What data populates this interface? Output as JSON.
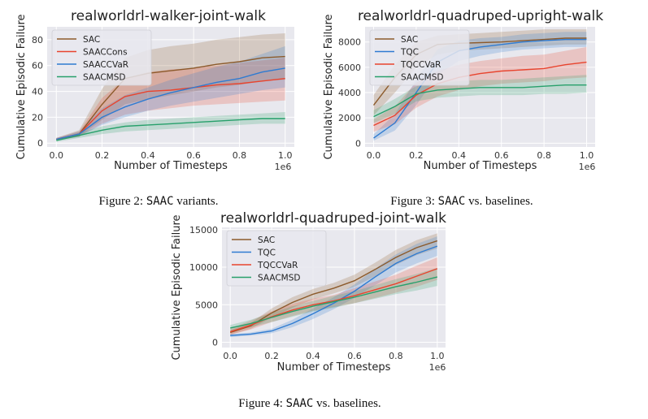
{
  "colors": {
    "panel_bg": "#e8e8ee",
    "grid": "#ffffff",
    "SAC": "#8c5a2b",
    "SAACCons": "#e8442e",
    "SAACCVaR": "#2f7bd1",
    "SAACMSD": "#27a06b",
    "TQC": "#2f7bd1",
    "TQCCVaR": "#e8442e"
  },
  "captions": [
    {
      "prefix": "Figure 2: ",
      "mono": "SAAC",
      "suffix": " variants."
    },
    {
      "prefix": "Figure 3: ",
      "mono": "SAAC",
      "suffix": " vs.  baselines."
    },
    {
      "prefix": "Figure 4: ",
      "mono": "SAAC",
      "suffix": " vs.  baselines."
    }
  ],
  "chart_data": [
    {
      "type": "line",
      "title": "realworldrl-walker-joint-walk",
      "xlabel": "Number of Timesteps",
      "ylabel": "Cumulative Episodic Failure",
      "x_offset_label": "1e6",
      "xlim": [
        -0.04,
        1.04
      ],
      "ylim": [
        -3,
        90
      ],
      "xticks": [
        0.0,
        0.2,
        0.4,
        0.6,
        0.8,
        1.0
      ],
      "xtick_labels": [
        "0.0",
        "0.2",
        "0.4",
        "0.6",
        "0.8",
        "1.0"
      ],
      "yticks": [
        0,
        20,
        40,
        60,
        80
      ],
      "ytick_labels": [
        "0",
        "20",
        "40",
        "60",
        "80"
      ],
      "legend_position": "top-left",
      "x": [
        0.0,
        0.1,
        0.2,
        0.3,
        0.4,
        0.5,
        0.6,
        0.7,
        0.8,
        0.9,
        1.0
      ],
      "series": [
        {
          "name": "SAC",
          "color": "SAC",
          "values": [
            3,
            7,
            30,
            50,
            54,
            56,
            58,
            61,
            63,
            66,
            67
          ],
          "lower": [
            2,
            5,
            18,
            30,
            34,
            37,
            40,
            43,
            45,
            48,
            49
          ],
          "upper": [
            4,
            10,
            42,
            66,
            72,
            75,
            77,
            80,
            82,
            84,
            85
          ]
        },
        {
          "name": "SAACCons",
          "color": "SAACCons",
          "values": [
            3,
            7,
            25,
            36,
            40,
            41,
            43,
            45,
            46,
            48,
            50
          ],
          "lower": [
            2,
            5,
            15,
            22,
            25,
            27,
            29,
            30,
            31,
            32,
            33
          ],
          "upper": [
            4,
            9,
            35,
            50,
            55,
            57,
            58,
            60,
            62,
            64,
            66
          ]
        },
        {
          "name": "SAACCVaR",
          "color": "SAACCVaR",
          "values": [
            3,
            7,
            20,
            28,
            34,
            39,
            43,
            47,
            50,
            55,
            58
          ],
          "lower": [
            2,
            5,
            14,
            20,
            25,
            29,
            32,
            35,
            38,
            41,
            43
          ],
          "upper": [
            4,
            9,
            27,
            37,
            43,
            49,
            54,
            59,
            63,
            69,
            75
          ]
        },
        {
          "name": "SAACMSD",
          "color": "SAACMSD",
          "values": [
            2,
            6,
            10,
            13,
            14,
            15,
            16,
            17,
            18,
            19,
            19
          ],
          "lower": [
            1,
            4,
            7,
            9,
            10,
            11,
            12,
            13,
            14,
            15,
            15
          ],
          "upper": [
            3,
            8,
            13,
            16,
            18,
            19,
            20,
            21,
            22,
            23,
            24
          ]
        }
      ]
    },
    {
      "type": "line",
      "title": "realworldrl-quadruped-upright-walk",
      "xlabel": "Number of Timesteps",
      "ylabel": "Cumulative Episodic Failure",
      "x_offset_label": "1e6",
      "xlim": [
        -0.04,
        1.04
      ],
      "ylim": [
        -300,
        9200
      ],
      "xticks": [
        0.0,
        0.2,
        0.4,
        0.6,
        0.8,
        1.0
      ],
      "xtick_labels": [
        "0.0",
        "0.2",
        "0.4",
        "0.6",
        "0.8",
        "1.0"
      ],
      "yticks": [
        0,
        2000,
        4000,
        6000,
        8000
      ],
      "ytick_labels": [
        "0",
        "2000",
        "4000",
        "6000",
        "8000"
      ],
      "legend_position": "top-left",
      "x": [
        0.0,
        0.1,
        0.2,
        0.3,
        0.4,
        0.5,
        0.6,
        0.7,
        0.8,
        0.9,
        1.0
      ],
      "series": [
        {
          "name": "SAC",
          "color": "SAC",
          "values": [
            3000,
            5200,
            7000,
            7800,
            7900,
            7950,
            8000,
            8100,
            8200,
            8300,
            8300
          ],
          "lower": [
            2200,
            4000,
            6000,
            7000,
            7300,
            7400,
            7500,
            7600,
            7700,
            7800,
            7800
          ],
          "upper": [
            3800,
            6200,
            8000,
            8500,
            8600,
            8700,
            8800,
            8900,
            9000,
            9000,
            9000
          ]
        },
        {
          "name": "TQC",
          "color": "TQC",
          "values": [
            400,
            1600,
            4000,
            6400,
            7300,
            7600,
            7800,
            8000,
            8100,
            8200,
            8200
          ],
          "lower": [
            200,
            1000,
            3000,
            5400,
            6500,
            6900,
            7200,
            7400,
            7500,
            7600,
            7600
          ],
          "upper": [
            700,
            2300,
            5000,
            7400,
            8100,
            8300,
            8400,
            8600,
            8700,
            8800,
            8800
          ]
        },
        {
          "name": "TQCCVaR",
          "color": "TQCCVaR",
          "values": [
            1400,
            2200,
            3800,
            4700,
            5200,
            5500,
            5700,
            5800,
            5900,
            6200,
            6400
          ],
          "lower": [
            900,
            1500,
            2800,
            3700,
            4200,
            4500,
            4700,
            4800,
            4900,
            5100,
            5200
          ],
          "upper": [
            1900,
            2900,
            4800,
            5700,
            6200,
            6500,
            6700,
            6900,
            7000,
            7300,
            7600
          ]
        },
        {
          "name": "SAACMSD",
          "color": "SAACMSD",
          "values": [
            2100,
            2900,
            3900,
            4200,
            4300,
            4400,
            4400,
            4400,
            4500,
            4600,
            4600
          ],
          "lower": [
            1600,
            2300,
            3300,
            3600,
            3700,
            3800,
            3800,
            3800,
            3900,
            3900,
            4000
          ],
          "upper": [
            2600,
            3500,
            4500,
            4800,
            4900,
            5000,
            5000,
            5100,
            5200,
            5300,
            5400
          ]
        }
      ]
    },
    {
      "type": "line",
      "title": "realworldrl-quadruped-joint-walk",
      "xlabel": "Number of Timesteps",
      "ylabel": "Cumulative Episodic Failure",
      "x_offset_label": "1e6",
      "xlim": [
        -0.04,
        1.04
      ],
      "ylim": [
        -700,
        15300
      ],
      "xticks": [
        0.0,
        0.2,
        0.4,
        0.6,
        0.8,
        1.0
      ],
      "xtick_labels": [
        "0.0",
        "0.2",
        "0.4",
        "0.6",
        "0.8",
        "1.0"
      ],
      "yticks": [
        0,
        5000,
        10000,
        15000
      ],
      "ytick_labels": [
        "0",
        "5000",
        "10000",
        "15000"
      ],
      "legend_position": "top-left",
      "x": [
        0.0,
        0.1,
        0.2,
        0.3,
        0.4,
        0.5,
        0.6,
        0.7,
        0.8,
        0.9,
        1.0
      ],
      "series": [
        {
          "name": "SAC",
          "color": "SAC",
          "values": [
            1300,
            2200,
            3900,
            5300,
            6400,
            7200,
            8200,
            9700,
            11300,
            12600,
            13500
          ],
          "lower": [
            1000,
            1800,
            3300,
            4600,
            5700,
            6500,
            7400,
            8800,
            10300,
            11600,
            12500
          ],
          "upper": [
            1600,
            2600,
            4500,
            6000,
            7100,
            7900,
            9000,
            10600,
            12300,
            13600,
            14500
          ]
        },
        {
          "name": "TQC",
          "color": "TQC",
          "values": [
            900,
            1100,
            1500,
            2500,
            3800,
            5200,
            6800,
            8700,
            10500,
            11800,
            12800
          ],
          "lower": [
            700,
            900,
            1200,
            2000,
            3100,
            4400,
            5900,
            7600,
            9300,
            10500,
            11500
          ],
          "upper": [
            1100,
            1300,
            1800,
            3000,
            4500,
            6000,
            7700,
            9800,
            11700,
            13100,
            14100
          ]
        },
        {
          "name": "TQCCVaR",
          "color": "TQCCVaR",
          "values": [
            1400,
            2300,
            3400,
            4300,
            5000,
            5500,
            6200,
            7000,
            7800,
            8800,
            9800
          ],
          "lower": [
            1000,
            1700,
            2700,
            3500,
            4200,
            4700,
            5200,
            5900,
            6600,
            7400,
            8300
          ],
          "upper": [
            1800,
            2900,
            4100,
            5100,
            5800,
            6300,
            7200,
            8100,
            9000,
            10200,
            11300
          ]
        },
        {
          "name": "SAACMSD",
          "color": "SAACMSD",
          "values": [
            1900,
            2500,
            3300,
            4100,
            4800,
            5400,
            6000,
            6700,
            7400,
            8000,
            8700
          ],
          "lower": [
            1500,
            2000,
            2700,
            3400,
            4100,
            4600,
            5200,
            5800,
            6400,
            6900,
            7500
          ],
          "upper": [
            2300,
            3000,
            3900,
            4800,
            5500,
            6200,
            6800,
            7600,
            8400,
            9100,
            9900
          ]
        }
      ]
    }
  ]
}
